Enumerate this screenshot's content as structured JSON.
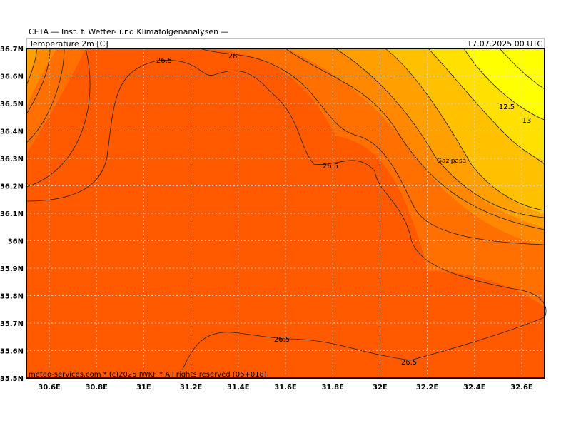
{
  "header": {
    "source": "CETA — Inst. f. Wetter- und Klimafolgenanalysen —",
    "variable": "Temperature 2m [C]",
    "date": "17.07.2025 00 UTC"
  },
  "map": {
    "lat_labels": [
      "36.7N",
      "36.6N",
      "36.5N",
      "36.4N",
      "36.3N",
      "36.2N",
      "36.1N",
      "36N",
      "35.9N",
      "35.8N",
      "35.7N",
      "35.6N",
      "35.5N"
    ],
    "lon_labels": [
      "30.6E",
      "30.8E",
      "31E",
      "31.2E",
      "31.4E",
      "31.6E",
      "31.8E",
      "32E",
      "32.2E",
      "32.4E",
      "32.6E"
    ],
    "contour_labels": [
      "26.5",
      "26",
      "26.5",
      "12.5",
      "13",
      "26.5",
      "26.5"
    ],
    "place": "Gazipasa",
    "footer": "meteo-services.com * (c)2025 IWKF * All rights reserved (06+018)"
  }
}
